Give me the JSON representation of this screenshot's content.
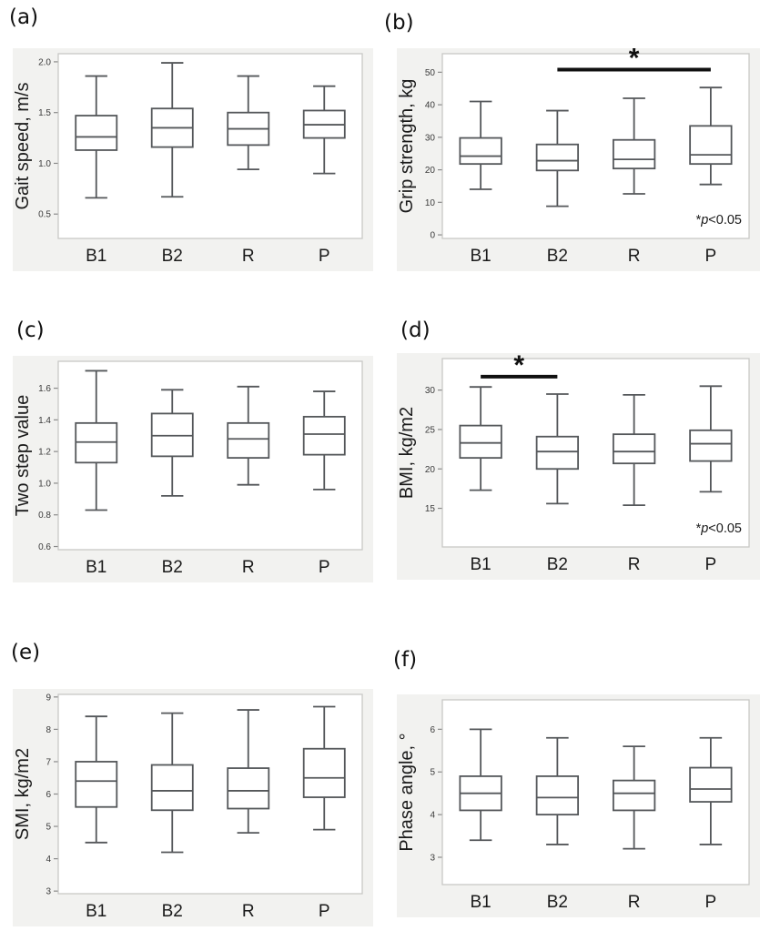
{
  "style": {
    "panel_bg": "#f2f2f0",
    "plot_bg": "#ffffff",
    "plot_border": "#c8c8c6",
    "box_stroke": "#54575a",
    "tick_color": "#8a8a8a",
    "tick_text_color": "#3a3a3a",
    "text_color": "#1a1a1a",
    "sig_color": "#101010"
  },
  "chart_data": [
    {
      "id": "a",
      "letter": "(a)",
      "type": "boxplot",
      "ylabel": "Gait speed, m/s",
      "categories": [
        "B1",
        "B2",
        "R",
        "P"
      ],
      "ylim": [
        0.26,
        2.08
      ],
      "yticks": [
        0.5,
        1.0,
        1.5,
        2.0
      ],
      "ytick_labels": [
        "0.5",
        "1.0",
        "1.5",
        "2.0"
      ],
      "series": [
        {
          "category": "B1",
          "min": 0.66,
          "q1": 1.13,
          "median": 1.26,
          "q3": 1.47,
          "max": 1.86
        },
        {
          "category": "B2",
          "min": 0.67,
          "q1": 1.16,
          "median": 1.35,
          "q3": 1.54,
          "max": 1.99
        },
        {
          "category": "R",
          "min": 0.94,
          "q1": 1.18,
          "median": 1.34,
          "q3": 1.5,
          "max": 1.86
        },
        {
          "category": "P",
          "min": 0.9,
          "q1": 1.25,
          "median": 1.38,
          "q3": 1.52,
          "max": 1.76
        }
      ]
    },
    {
      "id": "b",
      "letter": "(b)",
      "type": "boxplot",
      "ylabel": "Grip strength, kg",
      "categories": [
        "B1",
        "B2",
        "R",
        "P"
      ],
      "ylim": [
        -1.1,
        55.7
      ],
      "yticks": [
        0,
        10,
        20,
        30,
        40,
        50
      ],
      "ytick_labels": [
        "0",
        "10",
        "20",
        "30",
        "40",
        "50"
      ],
      "series": [
        {
          "category": "B1",
          "min": 14.0,
          "q1": 21.8,
          "median": 24.2,
          "q3": 29.8,
          "max": 41.0
        },
        {
          "category": "B2",
          "min": 8.8,
          "q1": 19.8,
          "median": 22.8,
          "q3": 27.8,
          "max": 38.2
        },
        {
          "category": "R",
          "min": 12.6,
          "q1": 20.4,
          "median": 23.2,
          "q3": 29.2,
          "max": 42.0
        },
        {
          "category": "P",
          "min": 15.5,
          "q1": 21.8,
          "median": 24.6,
          "q3": 33.5,
          "max": 45.3
        }
      ],
      "significance": {
        "from": "B2",
        "to": "P",
        "y": 50.8,
        "marker": "*"
      },
      "annotation": {
        "parts": [
          "*",
          "p",
          "<0.05"
        ],
        "italic_index": 1
      }
    },
    {
      "id": "c",
      "letter": "(c)",
      "type": "boxplot",
      "ylabel": "Two step value",
      "categories": [
        "B1",
        "B2",
        "R",
        "P"
      ],
      "ylim": [
        0.58,
        1.77
      ],
      "yticks": [
        0.6,
        0.8,
        1.0,
        1.2,
        1.4,
        1.6
      ],
      "ytick_labels": [
        "0.6",
        "0.8",
        "1.0",
        "1.2",
        "1.4",
        "1.6"
      ],
      "series": [
        {
          "category": "B1",
          "min": 0.83,
          "q1": 1.13,
          "median": 1.26,
          "q3": 1.38,
          "max": 1.71
        },
        {
          "category": "B2",
          "min": 0.92,
          "q1": 1.17,
          "median": 1.3,
          "q3": 1.44,
          "max": 1.59
        },
        {
          "category": "R",
          "min": 0.99,
          "q1": 1.16,
          "median": 1.28,
          "q3": 1.38,
          "max": 1.61
        },
        {
          "category": "P",
          "min": 0.96,
          "q1": 1.18,
          "median": 1.31,
          "q3": 1.42,
          "max": 1.58
        }
      ]
    },
    {
      "id": "d",
      "letter": "(d)",
      "type": "boxplot",
      "ylabel": "BMI,  kg/m2",
      "categories": [
        "B1",
        "B2",
        "R",
        "P"
      ],
      "ylim": [
        10.1,
        34.0
      ],
      "yticks": [
        15,
        20,
        25,
        30
      ],
      "ytick_labels": [
        "15",
        "20",
        "25",
        "30"
      ],
      "series": [
        {
          "category": "B1",
          "min": 17.3,
          "q1": 21.4,
          "median": 23.3,
          "q3": 25.5,
          "max": 30.4
        },
        {
          "category": "B2",
          "min": 15.6,
          "q1": 20.0,
          "median": 22.2,
          "q3": 24.1,
          "max": 29.5
        },
        {
          "category": "R",
          "min": 15.4,
          "q1": 20.7,
          "median": 22.2,
          "q3": 24.4,
          "max": 29.4
        },
        {
          "category": "P",
          "min": 17.1,
          "q1": 21.0,
          "median": 23.2,
          "q3": 24.9,
          "max": 30.5
        }
      ],
      "significance": {
        "from": "B1",
        "to": "B2",
        "y": 31.7,
        "marker": "*"
      },
      "annotation": {
        "parts": [
          "*",
          "p",
          "<0.05"
        ],
        "italic_index": 1
      }
    },
    {
      "id": "e",
      "letter": "(e)",
      "type": "boxplot",
      "ylabel": "SMI, kg/m2",
      "categories": [
        "B1",
        "B2",
        "R",
        "P"
      ],
      "ylim": [
        2.92,
        9.08
      ],
      "yticks": [
        3,
        4,
        5,
        6,
        7,
        8,
        9
      ],
      "ytick_labels": [
        "3",
        "4",
        "5",
        "6",
        "7",
        "8",
        "9"
      ],
      "series": [
        {
          "category": "B1",
          "min": 4.5,
          "q1": 5.6,
          "median": 6.4,
          "q3": 7.0,
          "max": 8.4
        },
        {
          "category": "B2",
          "min": 4.2,
          "q1": 5.5,
          "median": 6.1,
          "q3": 6.9,
          "max": 8.5
        },
        {
          "category": "R",
          "min": 4.8,
          "q1": 5.55,
          "median": 6.1,
          "q3": 6.8,
          "max": 8.6
        },
        {
          "category": "P",
          "min": 4.9,
          "q1": 5.9,
          "median": 6.5,
          "q3": 7.4,
          "max": 8.7
        }
      ]
    },
    {
      "id": "f",
      "letter": "(f)",
      "type": "boxplot",
      "ylabel": "Phase angle, °",
      "categories": [
        "B1",
        "B2",
        "R",
        "P"
      ],
      "ylim": [
        2.36,
        6.69
      ],
      "yticks": [
        3,
        4,
        5,
        6
      ],
      "ytick_labels": [
        "3",
        "4",
        "5",
        "6"
      ],
      "series": [
        {
          "category": "B1",
          "min": 3.4,
          "q1": 4.1,
          "median": 4.5,
          "q3": 4.9,
          "max": 6.0
        },
        {
          "category": "B2",
          "min": 3.3,
          "q1": 4.0,
          "median": 4.4,
          "q3": 4.9,
          "max": 5.8
        },
        {
          "category": "R",
          "min": 3.2,
          "q1": 4.1,
          "median": 4.5,
          "q3": 4.8,
          "max": 5.6
        },
        {
          "category": "P",
          "min": 3.3,
          "q1": 4.3,
          "median": 4.6,
          "q3": 5.1,
          "max": 5.8
        }
      ]
    }
  ]
}
